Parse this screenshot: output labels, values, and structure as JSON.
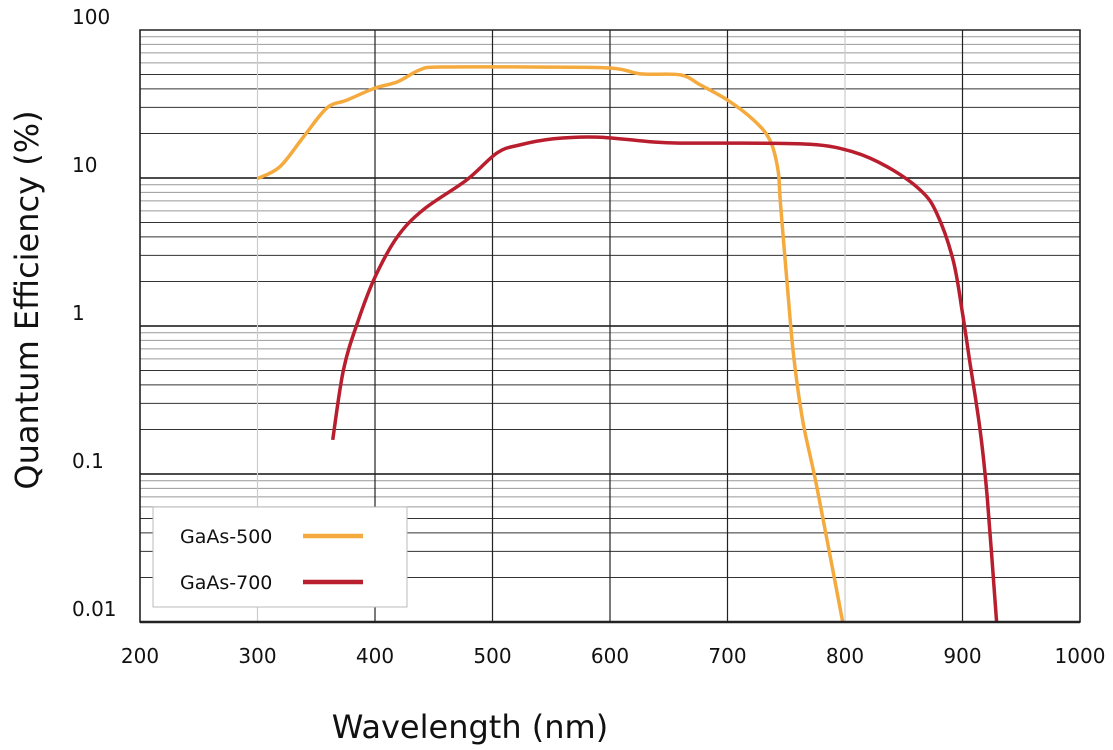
{
  "chart_data": {
    "type": "line",
    "title": "",
    "xlabel": "Wavelength (nm)",
    "ylabel": "Quantum Efficiency (%)",
    "xlim": [
      200,
      1000
    ],
    "ylim": [
      0.01,
      100
    ],
    "yscale": "log",
    "grid": true,
    "x_ticks": [
      200,
      300,
      400,
      500,
      600,
      700,
      800,
      900,
      1000
    ],
    "x_tick_labels": [
      "200",
      "300",
      "400",
      "500",
      "600",
      "700",
      "800",
      "900",
      "1000"
    ],
    "y_ticks": [
      100,
      10,
      1,
      0.1,
      0.01
    ],
    "y_tick_labels": [
      "100",
      "10",
      "1",
      "0.1",
      "0.01"
    ],
    "legend_position": "bottom-left",
    "series": [
      {
        "name": "GaAs-500",
        "color": "#F5AA3E",
        "points": [
          [
            300,
            9.9
          ],
          [
            319,
            11.9
          ],
          [
            339,
            18.9
          ],
          [
            359,
            29.7
          ],
          [
            376,
            33.6
          ],
          [
            400,
            40.5
          ],
          [
            419,
            44.6
          ],
          [
            438,
            53.7
          ],
          [
            455,
            56.2
          ],
          [
            532,
            56.2
          ],
          [
            600,
            55.4
          ],
          [
            626,
            50.5
          ],
          [
            660,
            49.7
          ],
          [
            677,
            42.5
          ],
          [
            700,
            33.6
          ],
          [
            722,
            24.7
          ],
          [
            736,
            18.1
          ],
          [
            743,
            11.3
          ],
          [
            745,
            6.8
          ],
          [
            751,
            1.84
          ],
          [
            756,
            0.66
          ],
          [
            764,
            0.23
          ],
          [
            776,
            0.082
          ],
          [
            798,
            0.01
          ]
        ]
      },
      {
        "name": "GaAs-700",
        "color": "#B81E2E",
        "points": [
          [
            364,
            0.17
          ],
          [
            373,
            0.5
          ],
          [
            385,
            1.05
          ],
          [
            400,
            2.14
          ],
          [
            419,
            4.0
          ],
          [
            441,
            6.1
          ],
          [
            478,
            9.7
          ],
          [
            504,
            14.8
          ],
          [
            523,
            16.7
          ],
          [
            552,
            18.4
          ],
          [
            589,
            18.9
          ],
          [
            637,
            17.5
          ],
          [
            660,
            17.2
          ],
          [
            694,
            17.2
          ],
          [
            770,
            16.9
          ],
          [
            807,
            15.0
          ],
          [
            836,
            11.9
          ],
          [
            864,
            8.3
          ],
          [
            878,
            5.8
          ],
          [
            892,
            2.79
          ],
          [
            900,
            1.22
          ],
          [
            906,
            0.59
          ],
          [
            915,
            0.198
          ],
          [
            921,
            0.07
          ],
          [
            929,
            0.01
          ]
        ]
      }
    ]
  }
}
